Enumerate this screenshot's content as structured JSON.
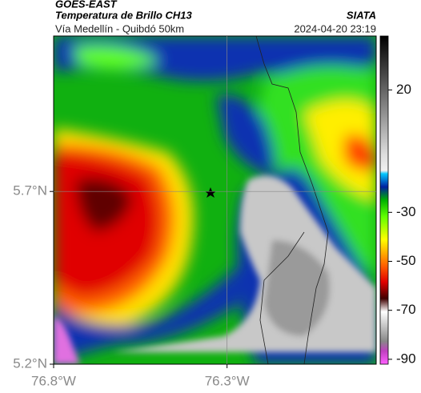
{
  "header": {
    "title": "GOES-EAST",
    "subtitle": "Temperatura de Brillo CH13",
    "source": "SIATA",
    "route": "Vía Medellín - Quibdó 50km",
    "datetime": "2024-04-20 23:19"
  },
  "map": {
    "xlim": [
      -76.8,
      -75.87
    ],
    "ylim": [
      5.2,
      6.15
    ],
    "xticks": [
      {
        "value": -76.8,
        "label": "76.8°W"
      },
      {
        "value": -76.3,
        "label": "76.3°W"
      }
    ],
    "yticks": [
      {
        "value": 5.2,
        "label": "5.2°N"
      },
      {
        "value": 5.7,
        "label": "5.7°N"
      }
    ],
    "grid": [
      -76.3,
      5.7
    ]
  },
  "colorbar": {
    "lim": [
      -92,
      42
    ],
    "ticks": [
      20,
      -30,
      -50,
      -70,
      -90
    ]
  }
}
